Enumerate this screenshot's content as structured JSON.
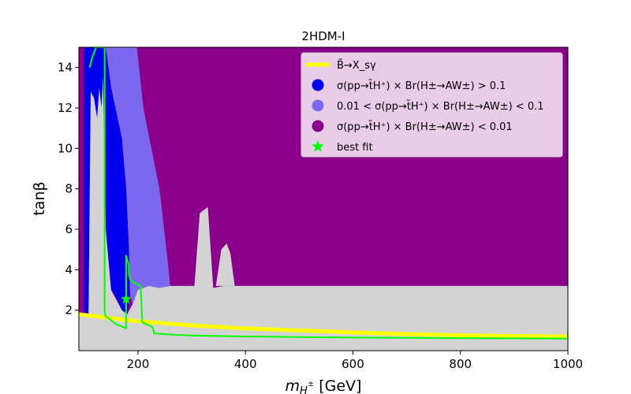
{
  "chart_data": {
    "type": "heatmap",
    "title": "2HDM-I",
    "xlabel_main": "m",
    "xlabel_sub": "H",
    "xlabel_sup": "±",
    "xlabel_unit": "[GeV]",
    "ylabel": "tanβ",
    "xlim": [
      90,
      1000
    ],
    "ylim": [
      0,
      15
    ],
    "x_ticks": [
      200,
      400,
      600,
      800,
      1000
    ],
    "y_ticks": [
      2,
      4,
      6,
      8,
      10,
      12,
      14
    ],
    "grid": false,
    "legend_position": "top-right",
    "colors": {
      "high": "#0000ee",
      "mid": "#7b68ee",
      "low": "#8b008b",
      "excluded": "#d3d3d3",
      "bsg": "#ffff00",
      "best_fit": "#00ff00"
    },
    "legend": [
      {
        "key": "bsg",
        "marker": "line",
        "color": "#ffff00",
        "label": "B̄→X_sγ"
      },
      {
        "key": "high",
        "marker": "circle",
        "color": "#0000ee",
        "label": "σ(pp→t̄H⁺) × Br(H±→AW±) > 0.1"
      },
      {
        "key": "mid",
        "marker": "circle",
        "color": "#7b68ee",
        "label": "0.01 < σ(pp→t̄H⁺) × Br(H±→AW±) < 0.1"
      },
      {
        "key": "low",
        "marker": "circle",
        "color": "#8b008b",
        "label": "σ(pp→t̄H⁺) × Br(H±→AW±) < 0.01"
      },
      {
        "key": "best_fit",
        "marker": "star",
        "color": "#00ff00",
        "label": "best fit"
      }
    ],
    "regions": {
      "excluded_gray": [
        [
          90,
          0
        ],
        [
          1000,
          0
        ],
        [
          1000,
          3.2
        ],
        [
          360,
          3.2
        ],
        [
          340,
          3.1
        ],
        [
          330,
          7.1
        ],
        [
          315,
          6.8
        ],
        [
          305,
          3.2
        ],
        [
          270,
          3.2
        ],
        [
          260,
          3.2
        ],
        [
          240,
          3.1
        ],
        [
          220,
          3.2
        ],
        [
          200,
          3.0
        ],
        [
          190,
          2.3
        ],
        [
          180,
          1.8
        ],
        [
          170,
          2.0
        ],
        [
          160,
          2.5
        ],
        [
          150,
          3.0
        ],
        [
          140,
          6.0
        ],
        [
          135,
          13.5
        ],
        [
          132,
          12.0
        ],
        [
          128,
          13.0
        ],
        [
          124,
          11.5
        ],
        [
          118,
          12.5
        ],
        [
          112,
          12.8
        ],
        [
          108,
          1.8
        ],
        [
          90,
          1.8
        ]
      ],
      "excluded_gray_bump": [
        [
          345,
          3.2
        ],
        [
          355,
          5.0
        ],
        [
          365,
          5.3
        ],
        [
          372,
          4.8
        ],
        [
          380,
          3.2
        ]
      ],
      "high_blue": [
        [
          100,
          15
        ],
        [
          140,
          15
        ],
        [
          150,
          13.0
        ],
        [
          170,
          10.5
        ],
        [
          178,
          8.0
        ],
        [
          183,
          5.0
        ],
        [
          185,
          2.8
        ],
        [
          180,
          1.8
        ],
        [
          170,
          2.0
        ],
        [
          160,
          2.6
        ],
        [
          150,
          3.0
        ],
        [
          140,
          6.0
        ],
        [
          135,
          13.5
        ],
        [
          132,
          12.0
        ],
        [
          128,
          13.0
        ],
        [
          124,
          11.5
        ],
        [
          118,
          12.5
        ],
        [
          112,
          12.8
        ],
        [
          108,
          1.8
        ],
        [
          100,
          1.8
        ]
      ],
      "mid_purple": [
        [
          105,
          15
        ],
        [
          198,
          15
        ],
        [
          210,
          12.0
        ],
        [
          240,
          8.0
        ],
        [
          255,
          4.5
        ],
        [
          260,
          3.2
        ],
        [
          240,
          3.1
        ],
        [
          220,
          3.2
        ],
        [
          200,
          3.0
        ],
        [
          190,
          2.3
        ],
        [
          185,
          2.8
        ],
        [
          183,
          5.0
        ],
        [
          178,
          8.0
        ],
        [
          170,
          10.5
        ],
        [
          150,
          13.0
        ],
        [
          140,
          15
        ]
      ]
    },
    "bsg_line": {
      "x": [
        90,
        200,
        300,
        400,
        500,
        600,
        700,
        800,
        900,
        1000
      ],
      "y": [
        1.8,
        1.45,
        1.25,
        1.1,
        1.0,
        0.9,
        0.82,
        0.76,
        0.72,
        0.7
      ]
    },
    "contour": {
      "x": [
        110,
        115,
        122,
        128,
        135,
        138,
        138,
        140,
        150,
        160,
        170,
        178,
        178,
        183,
        183,
        186,
        190,
        198,
        205,
        208,
        225,
        228,
        230,
        260,
        300,
        400,
        600,
        800,
        1000,
        1000
      ],
      "y": [
        14.0,
        14.5,
        15.0,
        15.0,
        15.0,
        15.0,
        1.9,
        1.7,
        1.5,
        1.3,
        1.2,
        1.1,
        4.7,
        4.2,
        3.8,
        3.5,
        3.4,
        3.3,
        3.2,
        1.4,
        1.2,
        1.1,
        0.85,
        0.8,
        0.75,
        0.7,
        0.65,
        0.62,
        0.6,
        1.0
      ]
    },
    "best_fit": {
      "x": 178,
      "y": 2.55
    }
  }
}
